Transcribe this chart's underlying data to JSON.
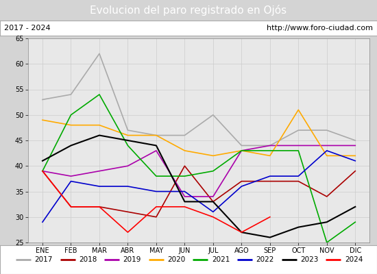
{
  "title": "Evolucion del paro registrado en Ojós",
  "subtitle_left": "2017 - 2024",
  "subtitle_right": "http://www.foro-ciudad.com",
  "months": [
    "ENE",
    "FEB",
    "MAR",
    "ABR",
    "MAY",
    "JUN",
    "JUL",
    "AGO",
    "SEP",
    "OCT",
    "NOV",
    "DIC"
  ],
  "ylim": [
    25,
    65
  ],
  "yticks": [
    25,
    30,
    35,
    40,
    45,
    50,
    55,
    60,
    65
  ],
  "series": {
    "2017": {
      "values": [
        53,
        54,
        62,
        47,
        46,
        46,
        50,
        44,
        44,
        47,
        47,
        45
      ],
      "color": "#aaaaaa",
      "lw": 1.2
    },
    "2018": {
      "values": [
        39,
        32,
        32,
        31,
        30,
        40,
        33,
        37,
        37,
        37,
        34,
        39
      ],
      "color": "#aa0000",
      "lw": 1.2
    },
    "2019": {
      "values": [
        39,
        38,
        39,
        40,
        43,
        34,
        34,
        43,
        44,
        44,
        44,
        44
      ],
      "color": "#aa00aa",
      "lw": 1.2
    },
    "2020": {
      "values": [
        49,
        48,
        48,
        46,
        46,
        43,
        42,
        43,
        42,
        51,
        42,
        42
      ],
      "color": "#ffaa00",
      "lw": 1.2
    },
    "2021": {
      "values": [
        39,
        50,
        54,
        44,
        38,
        38,
        39,
        43,
        43,
        43,
        25,
        29
      ],
      "color": "#00aa00",
      "lw": 1.2
    },
    "2022": {
      "values": [
        29,
        37,
        36,
        36,
        35,
        35,
        31,
        36,
        38,
        38,
        43,
        41
      ],
      "color": "#0000cc",
      "lw": 1.2
    },
    "2023": {
      "values": [
        41,
        44,
        46,
        45,
        44,
        33,
        33,
        27,
        26,
        28,
        29,
        32
      ],
      "color": "#000000",
      "lw": 1.5
    },
    "2024": {
      "values": [
        39,
        32,
        32,
        27,
        32,
        32,
        30,
        27,
        30,
        null,
        null,
        null
      ],
      "color": "#ff0000",
      "lw": 1.2
    }
  },
  "background_color": "#d4d4d4",
  "plot_bg": "#e8e8e8",
  "title_bg": "#4472c4",
  "title_color": "#ffffff",
  "subtitle_bg": "#ffffff",
  "legend_bg": "#ffffff",
  "border_color": "#aaaaaa"
}
